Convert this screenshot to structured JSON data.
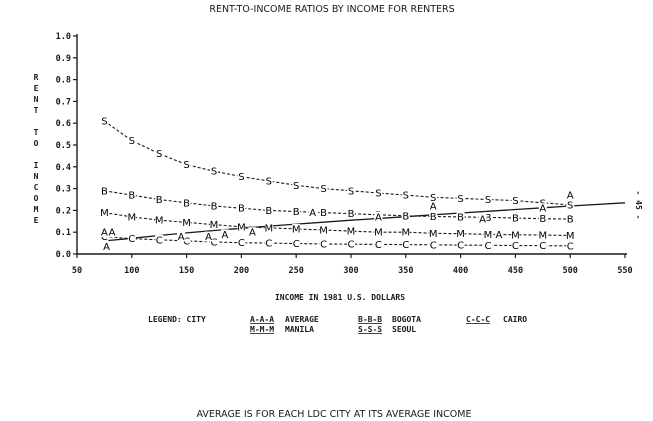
{
  "chart_data": {
    "type": "line",
    "title": "RENT-TO-INCOME RATIOS BY INCOME FOR RENTERS",
    "xlabel": "INCOME IN 1981 U.S. DOLLARS",
    "ylabel": "RENT TO INCOME",
    "xlim": [
      50,
      550
    ],
    "ylim": [
      0.0,
      1.0
    ],
    "x_ticks": [
      "50",
      "100",
      "150",
      "200",
      "250",
      "300",
      "350",
      "400",
      "450",
      "500",
      "550"
    ],
    "y_ticks": [
      "0.0",
      "0.1",
      "0.2",
      "0.3",
      "0.4",
      "0.5",
      "0.6",
      "0.7",
      "0.8",
      "0.9",
      "1.0"
    ],
    "grid": false,
    "legend": {
      "title": "LEGEND: CITY",
      "entries": [
        {
          "code": "A-A-A",
          "label": "AVERAGE"
        },
        {
          "code": "B-B-B",
          "label": "BOGOTA"
        },
        {
          "code": "C-C-C",
          "label": "CAIRO"
        },
        {
          "code": "M-M-M",
          "label": "MANILA"
        },
        {
          "code": "S-S-S",
          "label": "SEOUL"
        }
      ]
    },
    "x": [
      75,
      100,
      125,
      150,
      175,
      200,
      225,
      250,
      275,
      300,
      325,
      350,
      375,
      400,
      425,
      450,
      475,
      500
    ],
    "series": [
      {
        "name": "SEOUL",
        "marker": "S",
        "style": "dashed",
        "values": [
          0.61,
          0.52,
          0.46,
          0.41,
          0.38,
          0.355,
          0.335,
          0.315,
          0.3,
          0.29,
          0.28,
          0.27,
          0.26,
          0.255,
          0.25,
          0.245,
          0.235,
          0.225
        ]
      },
      {
        "name": "BOGOTA",
        "marker": "B",
        "style": "dashed",
        "values": [
          0.29,
          0.27,
          0.25,
          0.235,
          0.22,
          0.21,
          0.2,
          0.195,
          0.19,
          0.185,
          0.18,
          0.175,
          0.172,
          0.17,
          0.168,
          0.165,
          0.162,
          0.16
        ]
      },
      {
        "name": "MANILA",
        "marker": "M",
        "style": "dashed",
        "values": [
          0.19,
          0.17,
          0.155,
          0.145,
          0.135,
          0.125,
          0.12,
          0.115,
          0.11,
          0.105,
          0.1,
          0.1,
          0.095,
          0.093,
          0.09,
          0.088,
          0.087,
          0.085
        ]
      },
      {
        "name": "CAIRO",
        "marker": "C",
        "style": "dashed",
        "values": [
          0.08,
          0.07,
          0.065,
          0.06,
          0.055,
          0.052,
          0.05,
          0.048,
          0.046,
          0.045,
          0.044,
          0.043,
          0.042,
          0.041,
          0.04,
          0.039,
          0.038,
          0.037
        ]
      },
      {
        "name": "AVERAGE",
        "marker": "A",
        "style": "solid",
        "values": [
          0.06,
          0.072,
          0.085,
          0.097,
          0.108,
          0.118,
          0.128,
          0.137,
          0.146,
          0.155,
          0.163,
          0.171,
          0.18,
          0.188,
          0.196,
          0.204,
          0.212,
          0.22
        ],
        "extend_to": {
          "x": 550,
          "y": 0.235
        },
        "scatter_points": [
          {
            "x": 75,
            "y": 0.1
          },
          {
            "x": 77,
            "y": 0.035
          },
          {
            "x": 82,
            "y": 0.1
          },
          {
            "x": 145,
            "y": 0.08
          },
          {
            "x": 170,
            "y": 0.08
          },
          {
            "x": 185,
            "y": 0.09
          },
          {
            "x": 210,
            "y": 0.1
          },
          {
            "x": 265,
            "y": 0.19
          },
          {
            "x": 325,
            "y": 0.17
          },
          {
            "x": 375,
            "y": 0.22
          },
          {
            "x": 420,
            "y": 0.16
          },
          {
            "x": 435,
            "y": 0.09
          },
          {
            "x": 475,
            "y": 0.21
          },
          {
            "x": 500,
            "y": 0.27
          }
        ]
      }
    ],
    "side_note": "- 45 -",
    "footnote": "AVERAGE IS FOR EACH LDC CITY AT ITS AVERAGE INCOME"
  },
  "colors": {
    "ink": "#1a1a1a",
    "background": "#ffffff"
  }
}
